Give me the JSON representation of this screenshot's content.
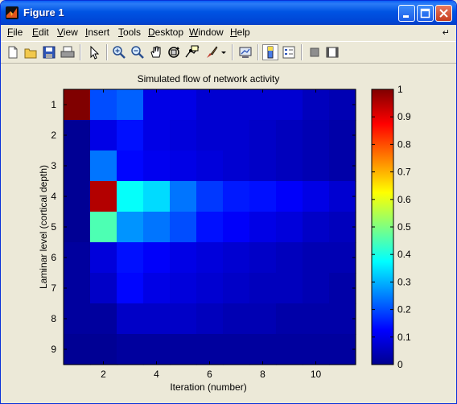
{
  "window": {
    "title": "Figure 1",
    "colors": {
      "titlebar": "#0054e3",
      "bg": "#ece9d8"
    }
  },
  "menu": [
    {
      "label": "File",
      "u": "F",
      "rest": "ile"
    },
    {
      "label": "Edit",
      "u": "E",
      "rest": "dit"
    },
    {
      "label": "View",
      "u": "V",
      "rest": "iew"
    },
    {
      "label": "Insert",
      "u": "I",
      "rest": "nsert"
    },
    {
      "label": "Tools",
      "u": "T",
      "rest": "ools"
    },
    {
      "label": "Desktop",
      "u": "D",
      "rest": "esktop"
    },
    {
      "label": "Window",
      "u": "W",
      "rest": "indow"
    },
    {
      "label": "Help",
      "u": "H",
      "rest": "elp"
    }
  ],
  "toolbar_icons": [
    "new-figure-icon",
    "open-file-icon",
    "save-icon",
    "print-icon",
    "edit-plot-arrow-icon",
    "zoom-in-icon",
    "zoom-out-icon",
    "pan-hand-icon",
    "rotate-3d-icon",
    "data-cursor-icon",
    "brush-icon",
    "brush-dropdown-icon",
    "link-plot-icon",
    "colorbar-icon",
    "legend-icon",
    "hide-plot-tools-icon",
    "show-plot-tools-icon"
  ],
  "chart_data": {
    "type": "heatmap",
    "title": "Simulated flow of network activity",
    "xlabel": "Iteration (number)",
    "ylabel": "Laminar level (cortical depth)",
    "x_ticks": [
      "2",
      "4",
      "6",
      "8",
      "10"
    ],
    "y_ticks": [
      "1",
      "2",
      "3",
      "4",
      "5",
      "6",
      "7",
      "8",
      "9"
    ],
    "x_range": [
      1,
      11
    ],
    "y_range": [
      1,
      9
    ],
    "colormap": "jet",
    "clim": [
      0,
      1
    ],
    "colorbar_ticks": [
      "0",
      "0.1",
      "0.2",
      "0.3",
      "0.4",
      "0.5",
      "0.6",
      "0.7",
      "0.8",
      "0.9",
      "1"
    ],
    "values": [
      [
        1.0,
        0.2,
        0.22,
        0.1,
        0.1,
        0.08,
        0.08,
        0.08,
        0.08,
        0.06,
        0.05
      ],
      [
        0.02,
        0.1,
        0.14,
        0.1,
        0.09,
        0.08,
        0.08,
        0.07,
        0.06,
        0.05,
        0.04
      ],
      [
        0.02,
        0.24,
        0.13,
        0.11,
        0.1,
        0.09,
        0.08,
        0.07,
        0.06,
        0.05,
        0.04
      ],
      [
        0.02,
        0.95,
        0.38,
        0.34,
        0.24,
        0.18,
        0.15,
        0.14,
        0.12,
        0.1,
        0.08
      ],
      [
        0.02,
        0.45,
        0.27,
        0.24,
        0.2,
        0.14,
        0.12,
        0.1,
        0.09,
        0.07,
        0.06
      ],
      [
        0.03,
        0.09,
        0.14,
        0.12,
        0.1,
        0.09,
        0.08,
        0.07,
        0.06,
        0.05,
        0.05
      ],
      [
        0.03,
        0.07,
        0.13,
        0.1,
        0.09,
        0.08,
        0.07,
        0.06,
        0.06,
        0.05,
        0.04
      ],
      [
        0.03,
        0.03,
        0.07,
        0.07,
        0.07,
        0.06,
        0.05,
        0.05,
        0.04,
        0.04,
        0.04
      ],
      [
        0.02,
        0.02,
        0.03,
        0.03,
        0.03,
        0.03,
        0.03,
        0.03,
        0.03,
        0.03,
        0.03
      ]
    ]
  }
}
